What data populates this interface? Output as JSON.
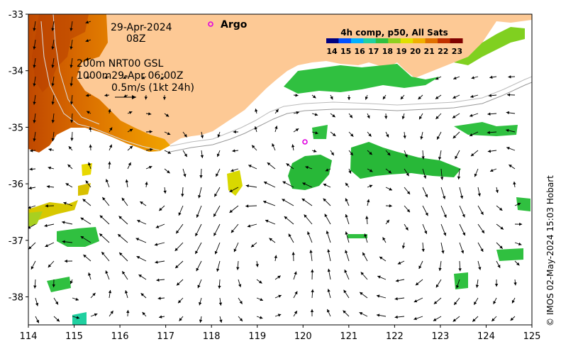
{
  "map": {
    "date": "29-Apr-2024",
    "hour": "08Z",
    "argo_label": "Argo",
    "contours": "200m  NRT00 GSL",
    "contours_2": "1000m29-Apr 06:00Z",
    "scale_label": "0.5m/s (1kt 24h)",
    "credit": "© IMOS 02-May-2024 15:03 Hobart",
    "x_ticks": [
      "114",
      "115",
      "116",
      "117",
      "118",
      "119",
      "120",
      "121",
      "122",
      "123",
      "124",
      "125"
    ],
    "y_ticks": [
      "-33",
      "-34",
      "-35",
      "-36",
      "-37",
      "-38"
    ],
    "colors": {
      "land": "#fdc995",
      "argo": "#e000e0",
      "arrow": "#000000"
    }
  },
  "colorbar": {
    "title": "4h comp, p50, All Sats",
    "ticks": [
      "14",
      "15",
      "16",
      "17",
      "18",
      "19",
      "20",
      "21",
      "22",
      "23"
    ],
    "colors": [
      "#000080",
      "#0050ff",
      "#00b0ff",
      "#20d0a0",
      "#30c040",
      "#90d020",
      "#e0e000",
      "#f0b000",
      "#e07000",
      "#c03000",
      "#800000"
    ]
  }
}
